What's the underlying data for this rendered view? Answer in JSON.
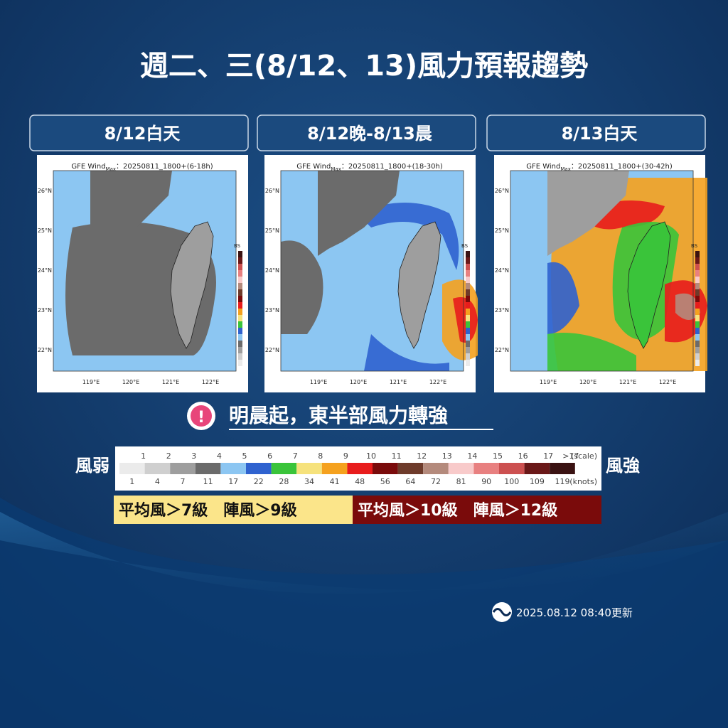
{
  "header": {
    "title": "週二、三(8/12、13)風力預報趨勢"
  },
  "panels": [
    {
      "label": "8/12白天",
      "map_title": "GFE Wind",
      "map_title_sub": "Max",
      "map_title_run": "：20250811_1800+(6-18h)"
    },
    {
      "label": "8/12晚-8/13晨",
      "map_title": "GFE Wind",
      "map_title_sub": "Max",
      "map_title_run": "：20250811_1800+(18-30h)"
    },
    {
      "label": "8/13白天",
      "map_title": "GFE Wind",
      "map_title_sub": "Max",
      "map_title_run": "：20250811_1800+(30-42h)"
    }
  ],
  "map_axes": {
    "lat": [
      "26°N",
      "25°N",
      "24°N",
      "23°N",
      "22°N"
    ],
    "lon": [
      "119°E",
      "120°E",
      "121°E",
      "122°E"
    ],
    "colorbar_label": "BS"
  },
  "alert": {
    "icon": "!",
    "text": "明晨起，東半部風力轉強"
  },
  "legend": {
    "left": "風弱",
    "right": "風強",
    "scale": [
      1,
      2,
      3,
      4,
      5,
      6,
      7,
      8,
      9,
      10,
      11,
      12,
      13,
      14,
      15,
      16,
      17,
      ">17"
    ],
    "scale_unit": "(scale)",
    "knots": [
      1,
      4,
      7,
      11,
      17,
      22,
      28,
      34,
      41,
      48,
      56,
      64,
      72,
      81,
      90,
      100,
      109,
      119
    ],
    "knots_unit": "(knots)",
    "colors": [
      "#ebebeb",
      "#cfcfcf",
      "#9e9e9e",
      "#6b6b6b",
      "#8cc6f2",
      "#2f62cf",
      "#3ac43a",
      "#f6e27c",
      "#f5a11e",
      "#e81c1c",
      "#7a0b0b",
      "#6e3b2b",
      "#b48a7c",
      "#f8caca",
      "#e88080",
      "#cc5050",
      "#6a1818",
      "#3a1212"
    ]
  },
  "notes": [
    {
      "text": "平均風＞7級　陣風＞9級",
      "color": "#fbe58a"
    },
    {
      "text": "平均風＞10級　陣風＞12級",
      "color": "#7a0b0b"
    }
  ],
  "footer": {
    "updated": "2025.08.12  08:40更新"
  }
}
